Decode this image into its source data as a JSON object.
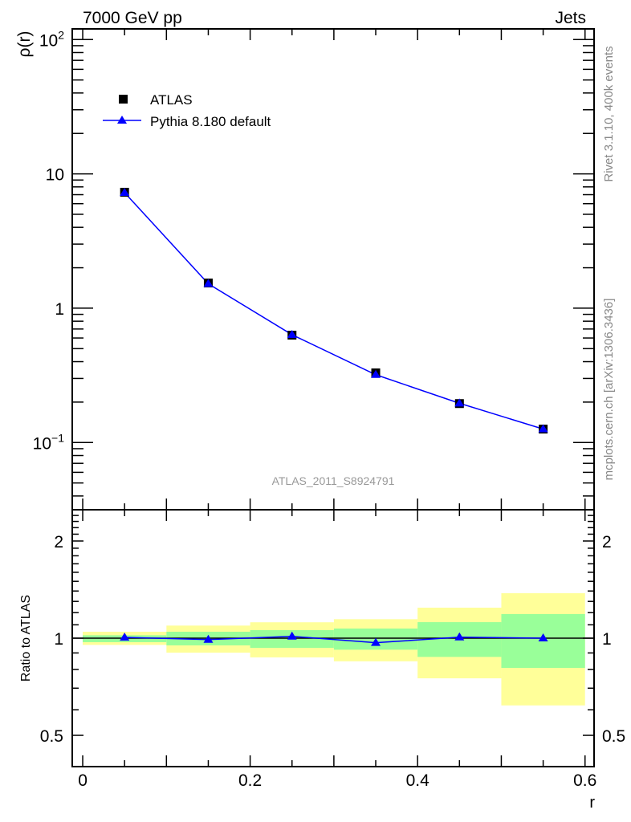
{
  "chart_data": [
    {
      "type": "scatter",
      "title_left": "7000 GeV pp",
      "title_right": "Jets",
      "ylabel": "ρ(r)",
      "yscale": "log",
      "ylim": [
        0.0316,
        120
      ],
      "xlim": [
        -0.0125,
        0.6108
      ],
      "yticks": [
        {
          "v": 100,
          "base": "10",
          "exp": "2"
        },
        {
          "v": 10,
          "base": "10",
          "exp": ""
        },
        {
          "v": 1,
          "base": "1",
          "exp": ""
        },
        {
          "v": 0.1,
          "base": "10",
          "exp": "−1"
        }
      ],
      "legend_position": "top-left",
      "x": [
        0.05,
        0.15,
        0.25,
        0.35,
        0.45,
        0.55
      ],
      "series": [
        {
          "name": "ATLAS",
          "marker": "square",
          "color": "#000000",
          "values": [
            7.3,
            1.54,
            0.63,
            0.33,
            0.195,
            0.126
          ]
        },
        {
          "name": "Pythia 8.180 default",
          "marker": "triangle",
          "color": "#0000ff",
          "values": [
            7.25,
            1.52,
            0.635,
            0.32,
            0.196,
            0.126
          ]
        }
      ],
      "watermark": "ATLAS_2011_S8924791"
    },
    {
      "type": "line",
      "ylabel": "Ratio to ATLAS",
      "xlabel": "r",
      "yscale": "log",
      "ylim": [
        0.4,
        2.5
      ],
      "yticks": [
        "2",
        "1",
        "0.5"
      ],
      "ytick_values": [
        2,
        1,
        0.5
      ],
      "xticks": [
        "0",
        "0.2",
        "0.4",
        "0.6"
      ],
      "xtick_values": [
        0,
        0.2,
        0.4,
        0.6
      ],
      "bins": [
        [
          0,
          0.1
        ],
        [
          0.1,
          0.2
        ],
        [
          0.2,
          0.3
        ],
        [
          0.3,
          0.4
        ],
        [
          0.4,
          0.5
        ],
        [
          0.5,
          0.6
        ]
      ],
      "band_outer": {
        "color": "#ffff99",
        "low": [
          0.953,
          0.902,
          0.872,
          0.848,
          0.751,
          0.619
        ],
        "high": [
          1.047,
          1.094,
          1.12,
          1.145,
          1.243,
          1.378
        ]
      },
      "band_inner": {
        "color": "#99ff99",
        "low": [
          0.972,
          0.95,
          0.933,
          0.921,
          0.875,
          0.809
        ],
        "high": [
          1.021,
          1.047,
          1.059,
          1.071,
          1.121,
          1.188
        ]
      },
      "x": [
        0.05,
        0.15,
        0.25,
        0.35,
        0.45,
        0.55
      ],
      "series": [
        {
          "name": "Pythia 8.180 default",
          "color": "#0000ff",
          "values": [
            1.006,
            0.99,
            1.013,
            0.968,
            1.007,
            1.0
          ]
        }
      ]
    }
  ],
  "side_text": {
    "rivet": "Rivet 3.1.10,  400k events",
    "mcplots": "mcplots.cern.ch [arXiv:1306.3436]"
  }
}
